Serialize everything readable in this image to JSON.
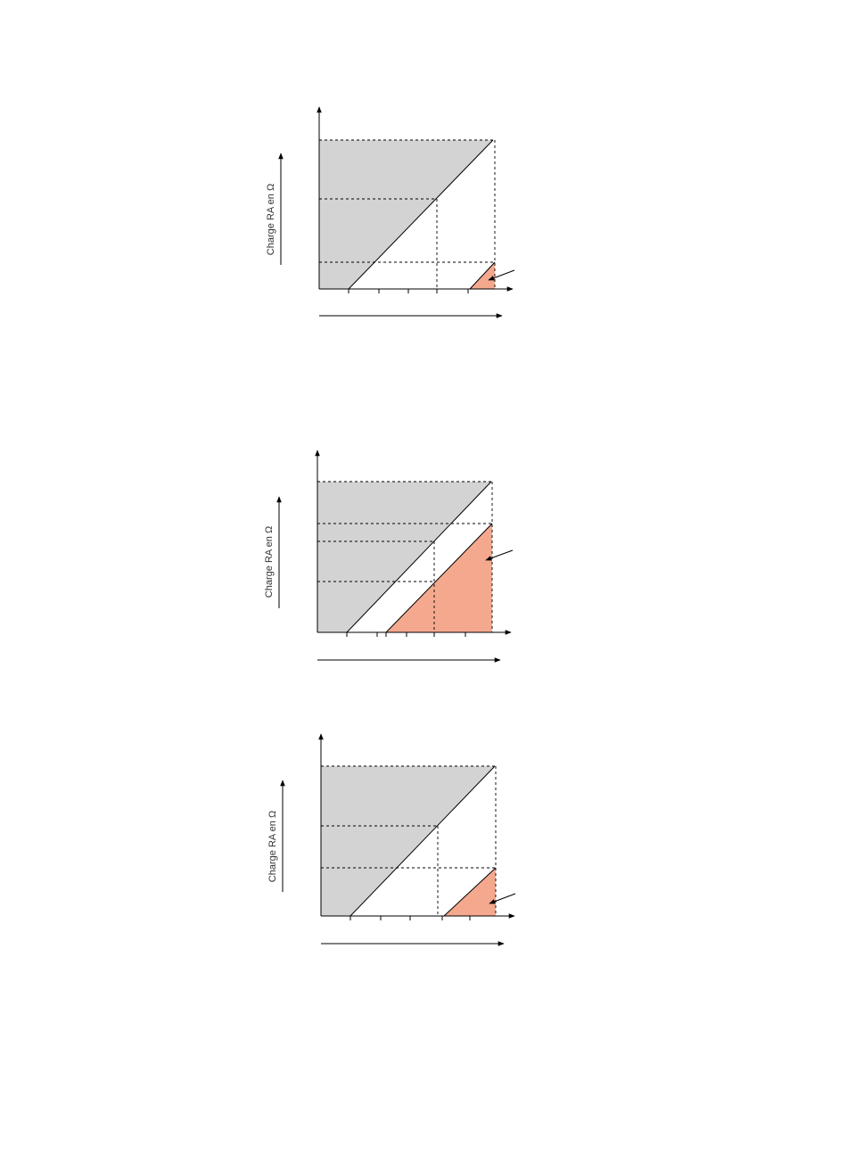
{
  "colors": {
    "grey_region": "#d3d3d3",
    "salmon_region": "#f4a98f",
    "line": "#000000"
  },
  "diagrams": [
    {
      "id": "diagram-1",
      "y_axis_label": "Charge RA en Ω"
    },
    {
      "id": "diagram-2",
      "y_axis_label": "Charge RA en Ω"
    },
    {
      "id": "diagram-3",
      "y_axis_label": "Charge RA en Ω"
    }
  ]
}
